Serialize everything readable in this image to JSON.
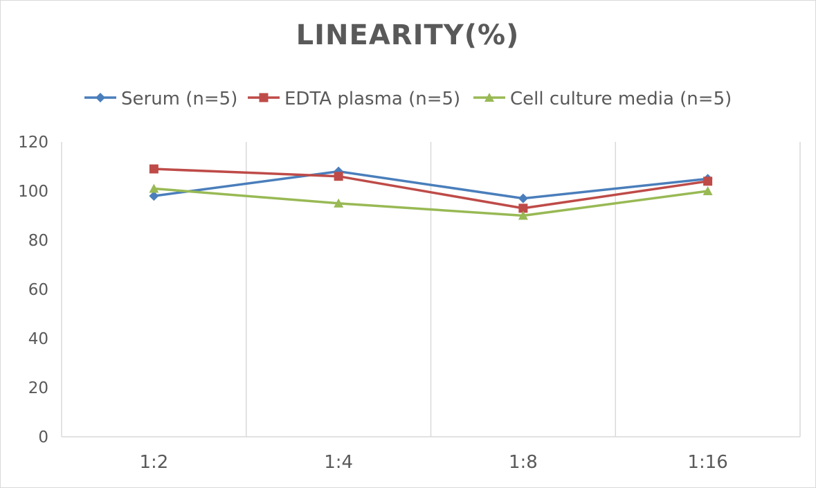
{
  "chart_data": {
    "type": "line",
    "title": "LINEARITY(%)",
    "xlabel": "",
    "ylabel": "",
    "categories": [
      "1:2",
      "1:4",
      "1:8",
      "1:16"
    ],
    "ylim": [
      0,
      120
    ],
    "yticks": [
      0,
      20,
      40,
      60,
      80,
      100,
      120
    ],
    "grid": "vertical category separators",
    "legend_position": "top",
    "series": [
      {
        "name": "Serum (n=5)",
        "color": "#4a7ebb",
        "marker": "diamond",
        "values": [
          98,
          108,
          97,
          105
        ]
      },
      {
        "name": "EDTA plasma (n=5)",
        "color": "#be4b48",
        "marker": "square",
        "values": [
          109,
          106,
          93,
          104
        ]
      },
      {
        "name": "Cell culture media (n=5)",
        "color": "#98b954",
        "marker": "triangle",
        "values": [
          101,
          95,
          90,
          100
        ]
      }
    ]
  }
}
